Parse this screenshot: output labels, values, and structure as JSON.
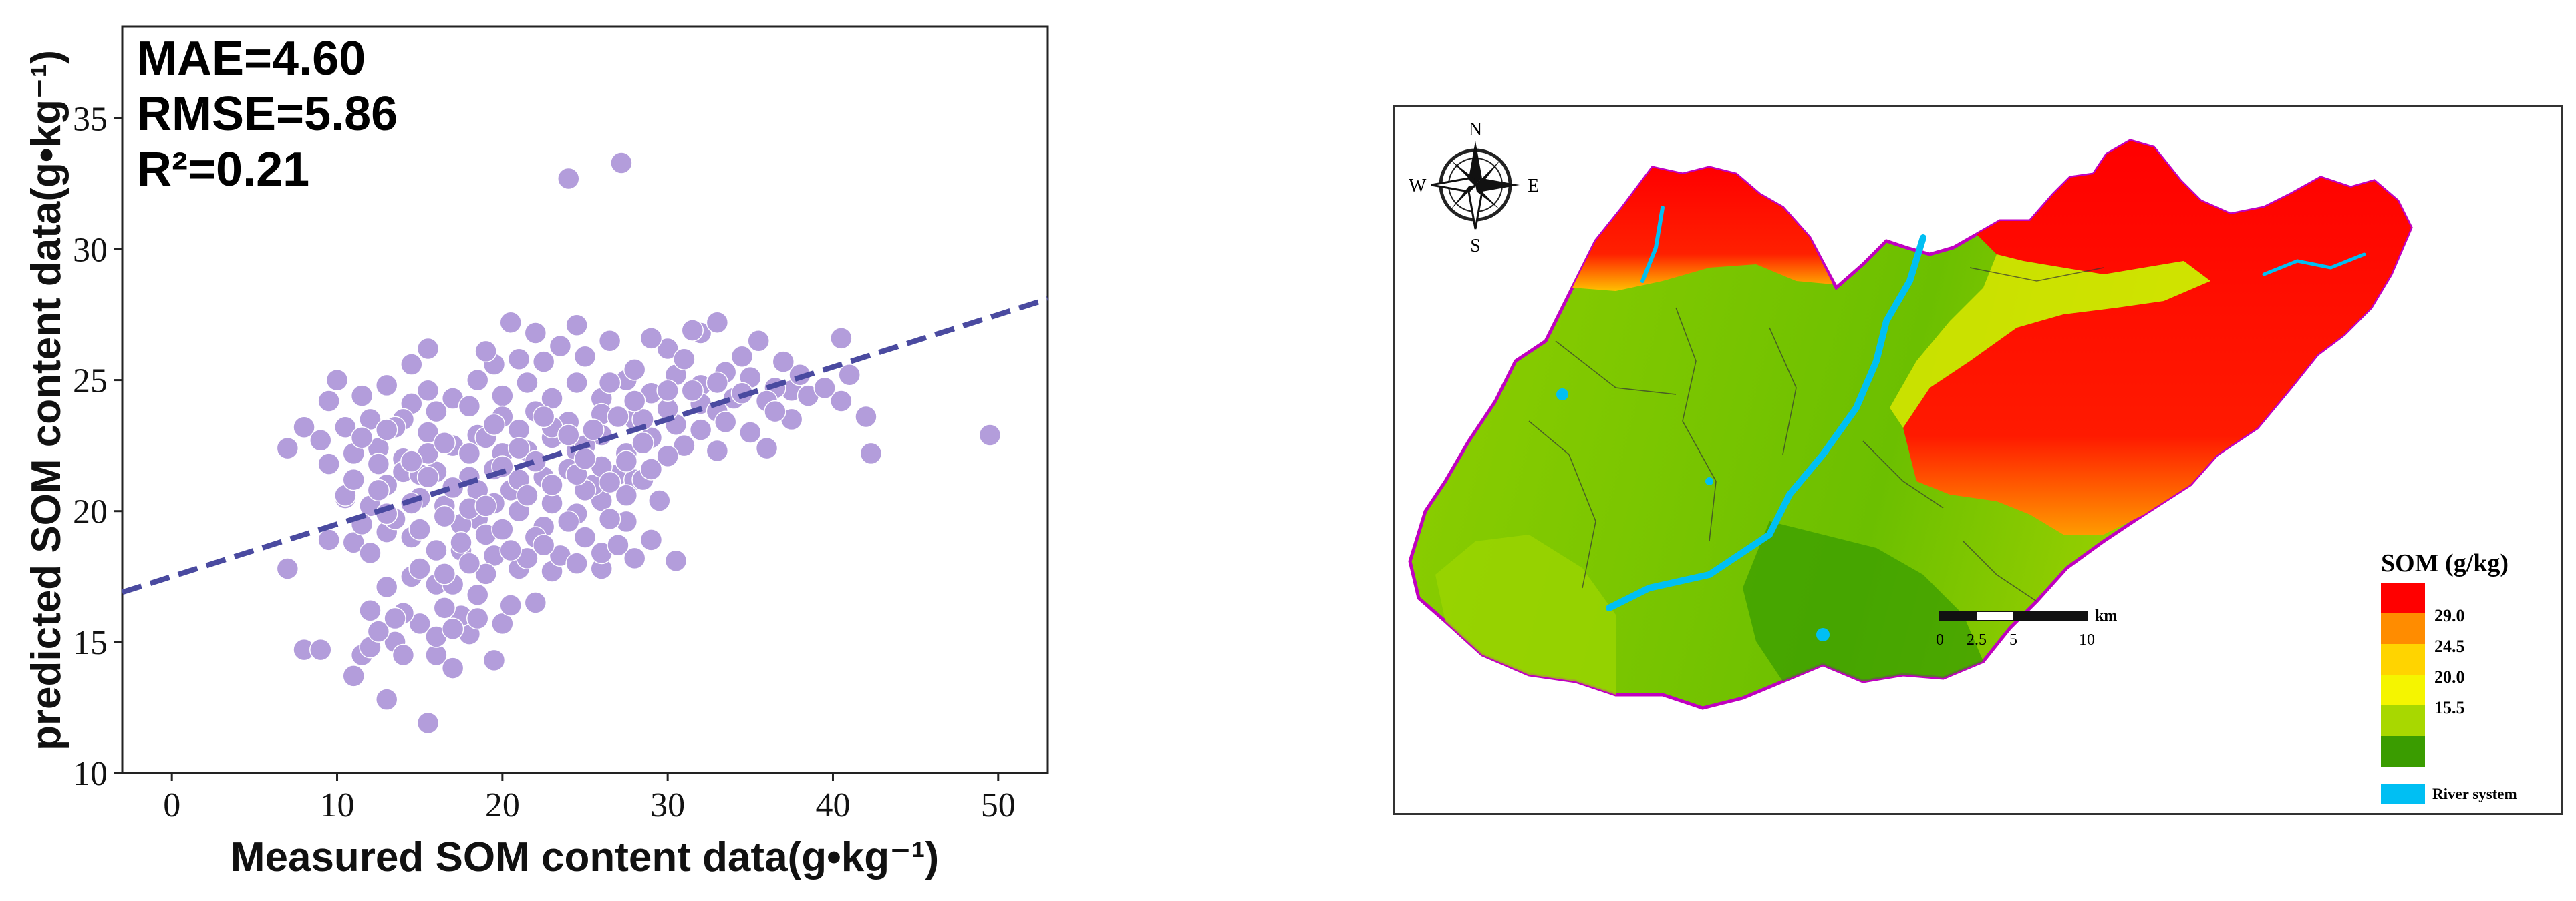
{
  "chart_data": [
    {
      "type": "scatter",
      "xlabel": "Measured SOM content data(g•kg⁻¹)",
      "ylabel": "predicted SOM content data(g•kg⁻¹)",
      "xlim": [
        -3,
        53
      ],
      "ylim": [
        10,
        38.5
      ],
      "xticks": [
        "0",
        "10",
        "20",
        "30",
        "40",
        "50"
      ],
      "yticks": [
        "10",
        "15",
        "20",
        "25",
        "30",
        "35"
      ],
      "grid": false,
      "stats": {
        "mae": "MAE=4.60",
        "rmse": "RMSE=5.86",
        "r2": "R²=0.21"
      },
      "fit_line": {
        "x": [
          -3,
          53
        ],
        "y": [
          16.9,
          28.1
        ]
      },
      "point_color": "#b39ddb",
      "line_color": "#4a4aa0",
      "points": [
        [
          27.2,
          33.3
        ],
        [
          24,
          32.7
        ],
        [
          49.5,
          22.9
        ],
        [
          42.3,
          22.2
        ],
        [
          42,
          23.6
        ],
        [
          40.5,
          26.6
        ],
        [
          41,
          25.2
        ],
        [
          40.5,
          24.2
        ],
        [
          37.5,
          24.6
        ],
        [
          38,
          25.2
        ],
        [
          15.5,
          11.9
        ],
        [
          13,
          12.8
        ],
        [
          11,
          13.7
        ],
        [
          8,
          14.7
        ],
        [
          9,
          14.7
        ],
        [
          11.5,
          14.5
        ],
        [
          12,
          14.8
        ],
        [
          13.5,
          15
        ],
        [
          14,
          14.5
        ],
        [
          16,
          14.5
        ],
        [
          17,
          14
        ],
        [
          19.5,
          14.3
        ],
        [
          15,
          15.7
        ],
        [
          18,
          15.3
        ],
        [
          17.5,
          16
        ],
        [
          18.5,
          15.9
        ],
        [
          20,
          15.7
        ],
        [
          14,
          16.1
        ],
        [
          16.5,
          16.3
        ],
        [
          22,
          16.5
        ],
        [
          7,
          17.8
        ],
        [
          9.5,
          18.9
        ],
        [
          11,
          18.8
        ],
        [
          12,
          18.4
        ],
        [
          13,
          19.2
        ],
        [
          14.5,
          19
        ],
        [
          16,
          18.5
        ],
        [
          17.5,
          18.5
        ],
        [
          19.5,
          18.3
        ],
        [
          21,
          17.8
        ],
        [
          23,
          17.7
        ],
        [
          26,
          17.8
        ],
        [
          28,
          18.2
        ],
        [
          30.5,
          18.1
        ],
        [
          10.5,
          20.5
        ],
        [
          12,
          20.2
        ],
        [
          13,
          21
        ],
        [
          15,
          20.5
        ],
        [
          16.5,
          20.2
        ],
        [
          18.5,
          19.7
        ],
        [
          20.5,
          20.8
        ],
        [
          22.5,
          19.4
        ],
        [
          24.5,
          19.9
        ],
        [
          26,
          20.4
        ],
        [
          27.5,
          19.6
        ],
        [
          29.5,
          20.4
        ],
        [
          7,
          22.4
        ],
        [
          8,
          23.2
        ],
        [
          9.5,
          21.8
        ],
        [
          11,
          22.2
        ],
        [
          12.5,
          22.4
        ],
        [
          14,
          22
        ],
        [
          15.5,
          23
        ],
        [
          17,
          22.5
        ],
        [
          18.5,
          22.9
        ],
        [
          20,
          22.2
        ],
        [
          21.5,
          22.3
        ],
        [
          23,
          22.8
        ],
        [
          24.5,
          22.3
        ],
        [
          26,
          22.9
        ],
        [
          27.5,
          22.2
        ],
        [
          29,
          22.8
        ],
        [
          30.5,
          23.3
        ],
        [
          32,
          23.1
        ],
        [
          33,
          22.3
        ],
        [
          35,
          23
        ],
        [
          36,
          22.4
        ],
        [
          37.5,
          23.5
        ],
        [
          9.5,
          24.2
        ],
        [
          10,
          25
        ],
        [
          11.5,
          24.4
        ],
        [
          13,
          24.8
        ],
        [
          14.5,
          24.1
        ],
        [
          15.5,
          24.6
        ],
        [
          17,
          24.3
        ],
        [
          18.5,
          25
        ],
        [
          20,
          24.4
        ],
        [
          21.5,
          24.9
        ],
        [
          23,
          24.3
        ],
        [
          24.5,
          24.9
        ],
        [
          26,
          24.3
        ],
        [
          27.5,
          25
        ],
        [
          29,
          24.5
        ],
        [
          30.5,
          25.2
        ],
        [
          32,
          24.8
        ],
        [
          33.5,
          25.3
        ],
        [
          35,
          25.1
        ],
        [
          36.5,
          24.7
        ],
        [
          14.5,
          25.6
        ],
        [
          15.5,
          26.2
        ],
        [
          20.5,
          27.2
        ],
        [
          22,
          26.8
        ],
        [
          24.5,
          27.1
        ],
        [
          30,
          26.2
        ],
        [
          32,
          26.8
        ],
        [
          33,
          27.2
        ],
        [
          35.5,
          26.5
        ],
        [
          16,
          21.5
        ],
        [
          18,
          21.3
        ],
        [
          19.5,
          21.6
        ],
        [
          21,
          21.2
        ],
        [
          22.5,
          21.3
        ],
        [
          24,
          21.6
        ],
        [
          25.5,
          21
        ],
        [
          27,
          21.4
        ],
        [
          28,
          21.2
        ],
        [
          16,
          17.2
        ],
        [
          17,
          17.2
        ],
        [
          19,
          17.6
        ],
        [
          21.5,
          18.2
        ],
        [
          23.5,
          18.3
        ],
        [
          25,
          19
        ],
        [
          13.5,
          19.7
        ],
        [
          15,
          19.3
        ],
        [
          17.5,
          19.5
        ],
        [
          19,
          19.1
        ],
        [
          21,
          20
        ],
        [
          23,
          20.3
        ],
        [
          25,
          20.8
        ],
        [
          14,
          23.5
        ],
        [
          16,
          23.8
        ],
        [
          18,
          24
        ],
        [
          20,
          23.6
        ],
        [
          22,
          23.8
        ],
        [
          24,
          23.4
        ],
        [
          26,
          23.7
        ],
        [
          28,
          23.5
        ],
        [
          30,
          23.9
        ],
        [
          32,
          24.1
        ],
        [
          34,
          24.3
        ],
        [
          36,
          24.2
        ],
        [
          10.5,
          20.6
        ],
        [
          12.5,
          20.8
        ],
        [
          15.5,
          22.2
        ],
        [
          19,
          22.8
        ],
        [
          21,
          23.1
        ],
        [
          23,
          23.2
        ],
        [
          25,
          22.5
        ],
        [
          28.5,
          23.5
        ],
        [
          31,
          22.5
        ],
        [
          33,
          23.8
        ],
        [
          12,
          16.2
        ],
        [
          14.5,
          17.5
        ],
        [
          17.5,
          18.8
        ],
        [
          20,
          19.3
        ],
        [
          22,
          19
        ],
        [
          24,
          19.6
        ],
        [
          26.5,
          19.7
        ],
        [
          28.5,
          21.2
        ],
        [
          19.5,
          25.6
        ],
        [
          22.5,
          25.7
        ],
        [
          25,
          25.9
        ],
        [
          28,
          25.4
        ],
        [
          31,
          25.8
        ],
        [
          34.5,
          25.9
        ],
        [
          37,
          25.7
        ],
        [
          9,
          22.7
        ],
        [
          10.5,
          23.2
        ],
        [
          12,
          23.5
        ],
        [
          13.5,
          23.2
        ],
        [
          11,
          21.2
        ],
        [
          12.5,
          21.8
        ],
        [
          14,
          21.5
        ],
        [
          15,
          21.4
        ],
        [
          17,
          20.9
        ],
        [
          18.5,
          20.8
        ],
        [
          20,
          21.7
        ],
        [
          26.5,
          24.9
        ],
        [
          28,
          24.2
        ],
        [
          30,
          24.6
        ],
        [
          31.5,
          24.6
        ],
        [
          33,
          24.9
        ],
        [
          34.5,
          24.5
        ],
        [
          13,
          17.1
        ],
        [
          15,
          17.8
        ],
        [
          16.5,
          17.6
        ],
        [
          18,
          18
        ],
        [
          20.5,
          18.5
        ],
        [
          22.5,
          18.7
        ],
        [
          24.5,
          18
        ],
        [
          26,
          18.4
        ],
        [
          27,
          18.7
        ],
        [
          29,
          18.9
        ],
        [
          11.5,
          19.5
        ],
        [
          13,
          19.9
        ],
        [
          14.5,
          20.3
        ],
        [
          16.5,
          19.8
        ],
        [
          18,
          20.1
        ],
        [
          19.5,
          20.3
        ],
        [
          21.5,
          20.6
        ],
        [
          23,
          21
        ],
        [
          24.5,
          21.4
        ],
        [
          26,
          21.7
        ],
        [
          27.5,
          21.9
        ],
        [
          29,
          21.6
        ],
        [
          19,
          26.1
        ],
        [
          21,
          25.8
        ],
        [
          23.5,
          26.3
        ],
        [
          26.5,
          26.5
        ],
        [
          29,
          26.6
        ],
        [
          31.5,
          26.9
        ],
        [
          16.5,
          22.6
        ],
        [
          18,
          22.2
        ],
        [
          19.5,
          23.3
        ],
        [
          21,
          22.4
        ],
        [
          22.5,
          23.6
        ],
        [
          24,
          22.9
        ],
        [
          25.5,
          23.1
        ],
        [
          27,
          23.6
        ],
        [
          28.5,
          22.6
        ],
        [
          30,
          22.1
        ],
        [
          38.5,
          24.4
        ],
        [
          39.5,
          24.7
        ],
        [
          36.5,
          23.8
        ],
        [
          33.5,
          23.4
        ],
        [
          12.5,
          15.4
        ],
        [
          13.5,
          15.9
        ],
        [
          16,
          15.2
        ],
        [
          17,
          15.5
        ],
        [
          18.5,
          16.8
        ],
        [
          20.5,
          16.4
        ],
        [
          14.5,
          21.9
        ],
        [
          15.5,
          21.3
        ],
        [
          19,
          20.2
        ],
        [
          22,
          21.9
        ],
        [
          25,
          22
        ],
        [
          27.5,
          20.6
        ],
        [
          26.5,
          21.1
        ],
        [
          11.5,
          22.8
        ],
        [
          13,
          23.1
        ]
      ]
    },
    {
      "type": "heatmap",
      "legend_title": "SOM (g/kg)",
      "legend_classes": [
        {
          "color": "#ff0000"
        },
        {
          "color": "#ff8c00",
          "label": "29.0"
        },
        {
          "color": "#ffd400",
          "label": "24.5"
        },
        {
          "color": "#f5f500",
          "label": "20.0"
        },
        {
          "color": "#a8d800",
          "label": "15.5"
        },
        {
          "color": "#3a9c00"
        }
      ],
      "river_label": "River system",
      "river_color": "#00bff3",
      "scale_unit": "km",
      "scale_ticks": [
        "0",
        "2.5",
        "5",
        "10"
      ],
      "compass": {
        "n": "N",
        "s": "S",
        "e": "E",
        "w": "W"
      }
    }
  ]
}
